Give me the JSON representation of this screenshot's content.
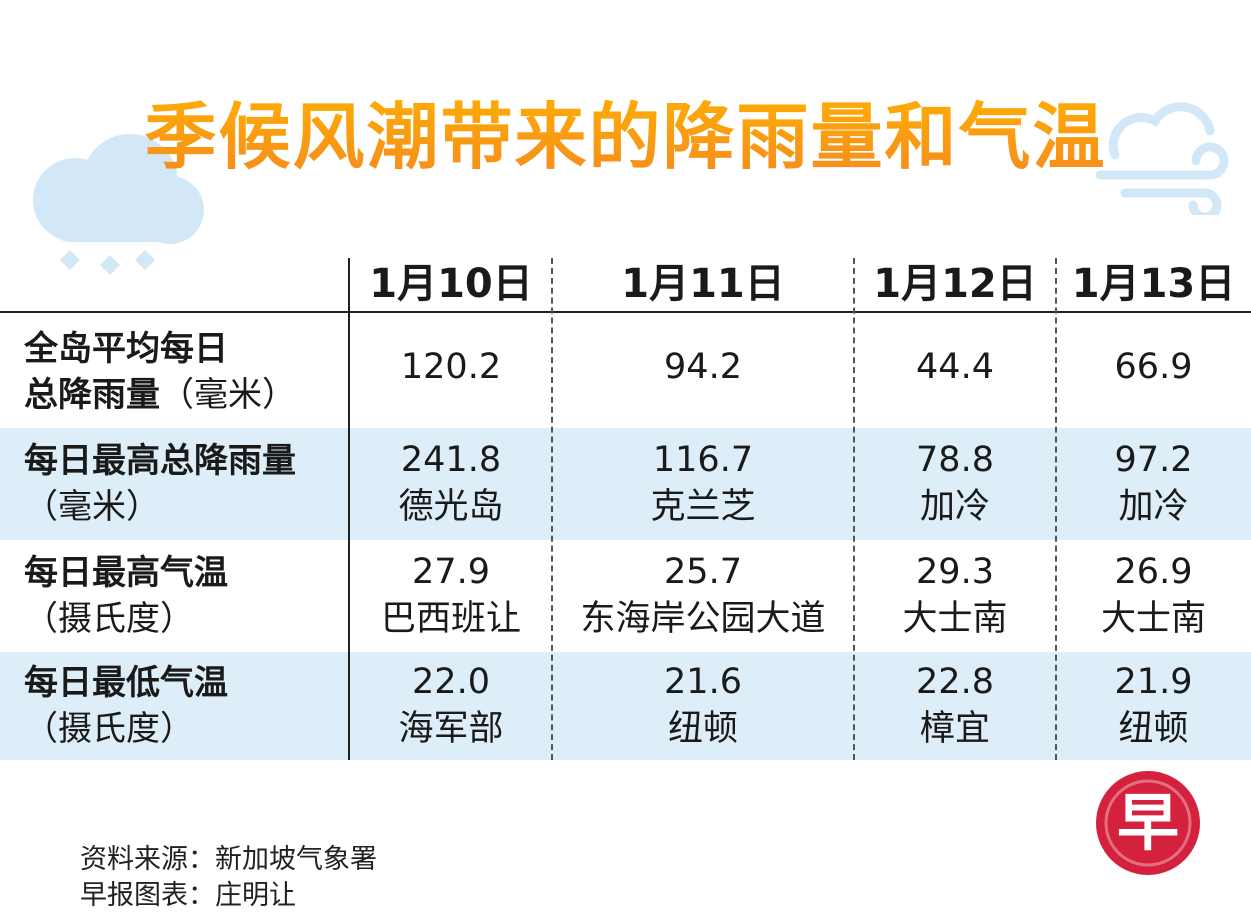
{
  "title": "季候风潮带来的降雨量和气温",
  "columns": [
    "1月10日",
    "1月11日",
    "1月12日",
    "1月13日"
  ],
  "rows": [
    {
      "label_line1": "全岛平均每日",
      "label_line2": "总降雨量",
      "label_unit": "（毫米）",
      "cells": [
        {
          "value": "120.2",
          "place": ""
        },
        {
          "value": "94.2",
          "place": ""
        },
        {
          "value": "44.4",
          "place": ""
        },
        {
          "value": "66.9",
          "place": ""
        }
      ]
    },
    {
      "label_line1": "每日最高总降雨量",
      "label_line2": "",
      "label_unit": "（毫米）",
      "cells": [
        {
          "value": "241.8",
          "place": "德光岛"
        },
        {
          "value": "116.7",
          "place": "克兰芝"
        },
        {
          "value": "78.8",
          "place": "加冷"
        },
        {
          "value": "97.2",
          "place": "加冷"
        }
      ]
    },
    {
      "label_line1": "每日最高气温",
      "label_line2": "",
      "label_unit": "（摄氏度）",
      "cells": [
        {
          "value": "27.9",
          "place": "巴西班让"
        },
        {
          "value": "25.7",
          "place": "东海岸公园大道"
        },
        {
          "value": "29.3",
          "place": "大士南"
        },
        {
          "value": "26.9",
          "place": "大士南"
        }
      ]
    },
    {
      "label_line1": "每日最低气温",
      "label_line2": "",
      "label_unit": "（摄氏度）",
      "cells": [
        {
          "value": "22.0",
          "place": "海军部"
        },
        {
          "value": "21.6",
          "place": "纽顿"
        },
        {
          "value": "22.8",
          "place": "樟宜"
        },
        {
          "value": "21.9",
          "place": "纽顿"
        }
      ]
    }
  ],
  "source_line": "资料来源：新加坡气象署",
  "credit_line": "早报图表：庄明让",
  "logo_text": "早",
  "colors": {
    "title_top": "#ffb300",
    "title_bottom": "#f58a1f",
    "row_shade": "#ddeef8",
    "logo_red": "#d4213d",
    "deco_blue": "#cfe6f5"
  },
  "icons": [
    "rain-cloud-icon",
    "wind-cloud-icon"
  ]
}
